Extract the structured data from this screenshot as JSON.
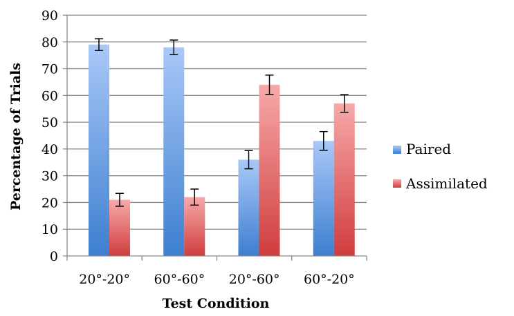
{
  "chart_data": {
    "type": "bar",
    "categories": [
      "20°-20°",
      "60°-60°",
      "20°-60°",
      "60°-20°"
    ],
    "series": [
      {
        "name": "Paired",
        "values": [
          79,
          78,
          36,
          43
        ],
        "errors": [
          2.2,
          2.7,
          3.4,
          3.5
        ],
        "color_top": "#a9c8f7",
        "color_bottom": "#3d7fd0"
      },
      {
        "name": "Assimilated",
        "values": [
          21,
          22,
          64,
          57
        ],
        "errors": [
          2.4,
          3.0,
          3.6,
          3.3
        ],
        "color_top": "#f7a9a9",
        "color_bottom": "#d03d3d"
      }
    ],
    "xlabel": "Test Condition",
    "ylabel": "Percentage of Trials",
    "ylim": [
      0,
      90
    ],
    "yticks": [
      0,
      10,
      20,
      30,
      40,
      50,
      60,
      70,
      80,
      90
    ],
    "grid": true,
    "legend_position": "right"
  }
}
